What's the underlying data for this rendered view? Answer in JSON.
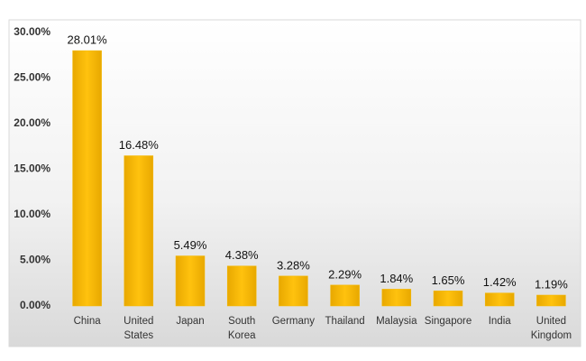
{
  "chart_data": {
    "type": "bar",
    "categories": [
      "China",
      "United States",
      "Japan",
      "South Korea",
      "Germany",
      "Thailand",
      "Malaysia",
      "Singapore",
      "India",
      "United Kingdom"
    ],
    "values": [
      28.01,
      16.48,
      5.49,
      4.38,
      3.28,
      2.29,
      1.84,
      1.65,
      1.42,
      1.19
    ],
    "value_labels": [
      "28.01%",
      "16.48%",
      "5.49%",
      "4.38%",
      "3.28%",
      "2.29%",
      "1.84%",
      "1.65%",
      "1.42%",
      "1.19%"
    ],
    "color": "#f5b800",
    "ylim": [
      0,
      30
    ],
    "yticks": [
      {
        "value": 0,
        "label": "0.00%"
      },
      {
        "value": 5,
        "label": "5.00%"
      },
      {
        "value": 10,
        "label": "10.00%"
      },
      {
        "value": 15,
        "label": "15.00%"
      },
      {
        "value": 20,
        "label": "20.00%"
      },
      {
        "value": 25,
        "label": "25.00%"
      },
      {
        "value": 30,
        "label": "30.00%"
      }
    ],
    "grid": false
  }
}
